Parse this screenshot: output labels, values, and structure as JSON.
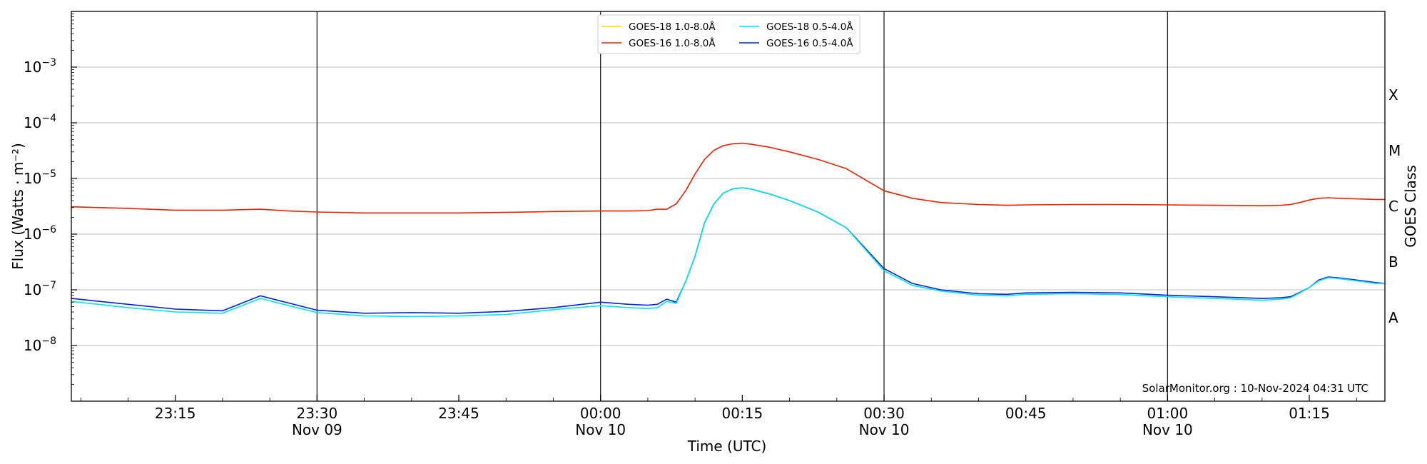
{
  "chart_data": {
    "type": "line",
    "x_unit": "time (UTC)",
    "xlabel": "Time (UTC)",
    "ylabel": "Flux (Watts · m⁻²)",
    "ylabel_right": "GOES Class",
    "credit": "SolarMonitor.org : 10-Nov-2024 04:31 UTC",
    "y_scale": "log",
    "ylim": [
      1e-09,
      0.01
    ],
    "xlim": [
      "2024-11-09 23:04",
      "2024-11-10 01:23"
    ],
    "y_ticks": [
      {
        "value": -8,
        "base": "10",
        "exp": "−8"
      },
      {
        "value": -7,
        "base": "10",
        "exp": "−7"
      },
      {
        "value": -6,
        "base": "10",
        "exp": "−6"
      },
      {
        "value": -5,
        "base": "10",
        "exp": "−5"
      },
      {
        "value": -4,
        "base": "10",
        "exp": "−4"
      },
      {
        "value": -3,
        "base": "10",
        "exp": "−3"
      }
    ],
    "x_ticks": [
      {
        "time": "2024-11-09 23:15",
        "label": "23:15",
        "date": ""
      },
      {
        "time": "2024-11-09 23:30",
        "label": "23:30",
        "date": "Nov 09"
      },
      {
        "time": "2024-11-09 23:45",
        "label": "23:45",
        "date": ""
      },
      {
        "time": "2024-11-10 00:00",
        "label": "00:00",
        "date": "Nov 10"
      },
      {
        "time": "2024-11-10 00:15",
        "label": "00:15",
        "date": ""
      },
      {
        "time": "2024-11-10 00:30",
        "label": "00:30",
        "date": "Nov 10"
      },
      {
        "time": "2024-11-10 00:45",
        "label": "00:45",
        "date": ""
      },
      {
        "time": "2024-11-10 01:00",
        "label": "01:00",
        "date": "Nov 10"
      },
      {
        "time": "2024-11-10 01:15",
        "label": "01:15",
        "date": ""
      }
    ],
    "vertical_lines": [
      "2024-11-09 23:30",
      "2024-11-10 00:00",
      "2024-11-10 00:30",
      "2024-11-10 01:00"
    ],
    "goes_classes": [
      {
        "label": "A",
        "flux": 3.16e-08
      },
      {
        "label": "B",
        "flux": 3.16e-07
      },
      {
        "label": "C",
        "flux": 3.16e-06
      },
      {
        "label": "M",
        "flux": 3.16e-05
      },
      {
        "label": "X",
        "flux": 0.000316
      }
    ],
    "legend": {
      "placement": "top-center",
      "entries": [
        {
          "label": "GOES-18 1.0-8.0Å",
          "color": "#ffd700"
        },
        {
          "label": "GOES-18 0.5-4.0Å",
          "color": "#00e5ee"
        },
        {
          "label": "GOES-16 1.0-8.0Å",
          "color": "#ee2200"
        },
        {
          "label": "GOES-16 0.5-4.0Å",
          "color": "#0022dd"
        }
      ]
    },
    "grid": "horizontal",
    "x": [
      "23:04",
      "23:10",
      "23:15",
      "23:20",
      "23:24",
      "23:27",
      "23:30",
      "23:35",
      "23:40",
      "23:45",
      "23:50",
      "23:55",
      "00:00",
      "00:03",
      "00:05",
      "00:06",
      "00:07",
      "00:08",
      "00:09",
      "00:10",
      "00:11",
      "00:12",
      "00:13",
      "00:14",
      "00:15",
      "00:16",
      "00:18",
      "00:20",
      "00:23",
      "00:26",
      "00:30",
      "00:33",
      "00:36",
      "00:40",
      "00:43",
      "00:45",
      "00:50",
      "00:55",
      "01:00",
      "01:05",
      "01:10",
      "01:12",
      "01:13",
      "01:14",
      "01:15",
      "01:16",
      "01:17",
      "01:18",
      "01:20",
      "01:22",
      "01:23"
    ],
    "series": [
      {
        "name": "GOES-16 1.0-8.0Å",
        "color": "#ee2200",
        "values": [
          3.1e-06,
          2.9e-06,
          2.7e-06,
          2.7e-06,
          2.8e-06,
          2.6e-06,
          2.5e-06,
          2.4e-06,
          2.4e-06,
          2.4e-06,
          2.45e-06,
          2.55e-06,
          2.6e-06,
          2.6e-06,
          2.65e-06,
          2.8e-06,
          2.8e-06,
          3.5e-06,
          6e-06,
          1.2e-05,
          2.2e-05,
          3.2e-05,
          3.9e-05,
          4.2e-05,
          4.3e-05,
          4.1e-05,
          3.6e-05,
          3e-05,
          2.2e-05,
          1.5e-05,
          6e-06,
          4.4e-06,
          3.7e-06,
          3.4e-06,
          3.3e-06,
          3.35e-06,
          3.4e-06,
          3.4e-06,
          3.35e-06,
          3.3e-06,
          3.25e-06,
          3.3e-06,
          3.4e-06,
          3.7e-06,
          4.1e-06,
          4.4e-06,
          4.5e-06,
          4.4e-06,
          4.3e-06,
          4.2e-06,
          4.2e-06
        ]
      },
      {
        "name": "GOES-16 0.5-4.0Å",
        "color": "#0022dd",
        "values": [
          7e-08,
          5.5e-08,
          4.5e-08,
          4.2e-08,
          7.8e-08,
          5.8e-08,
          4.3e-08,
          3.8e-08,
          3.9e-08,
          3.8e-08,
          4.1e-08,
          4.8e-08,
          6e-08,
          5.5e-08,
          5.3e-08,
          5.5e-08,
          6.8e-08,
          6e-08,
          1.4e-07,
          4e-07,
          1.6e-06,
          3.5e-06,
          5.5e-06,
          6.5e-06,
          6.8e-06,
          6.4e-06,
          5.2e-06,
          4e-06,
          2.5e-06,
          1.3e-06,
          2.4e-07,
          1.3e-07,
          1e-07,
          8.5e-08,
          8.3e-08,
          8.8e-08,
          9e-08,
          8.8e-08,
          8e-08,
          7.5e-08,
          7e-08,
          7.2e-08,
          7.5e-08,
          9e-08,
          1.1e-07,
          1.5e-07,
          1.7e-07,
          1.65e-07,
          1.5e-07,
          1.35e-07,
          1.3e-07
        ]
      },
      {
        "name": "GOES-18 0.5-4.0Å",
        "color": "#00e5ee",
        "values": [
          6.2e-08,
          4.8e-08,
          4e-08,
          3.8e-08,
          7e-08,
          5.2e-08,
          3.9e-08,
          3.4e-08,
          3.3e-08,
          3.4e-08,
          3.6e-08,
          4.4e-08,
          5.2e-08,
          4.8e-08,
          4.6e-08,
          4.8e-08,
          6.2e-08,
          5.7e-08,
          1.4e-07,
          4e-07,
          1.6e-06,
          3.5e-06,
          5.5e-06,
          6.5e-06,
          6.8e-06,
          6.4e-06,
          5.2e-06,
          4e-06,
          2.5e-06,
          1.3e-06,
          2.2e-07,
          1.2e-07,
          9.5e-08,
          8e-08,
          7.8e-08,
          8.3e-08,
          8.5e-08,
          8.2e-08,
          7.5e-08,
          7e-08,
          6.5e-08,
          6.8e-08,
          7.2e-08,
          8.8e-08,
          1.1e-07,
          1.45e-07,
          1.65e-07,
          1.6e-07,
          1.45e-07,
          1.3e-07,
          1.3e-07
        ]
      }
    ]
  }
}
